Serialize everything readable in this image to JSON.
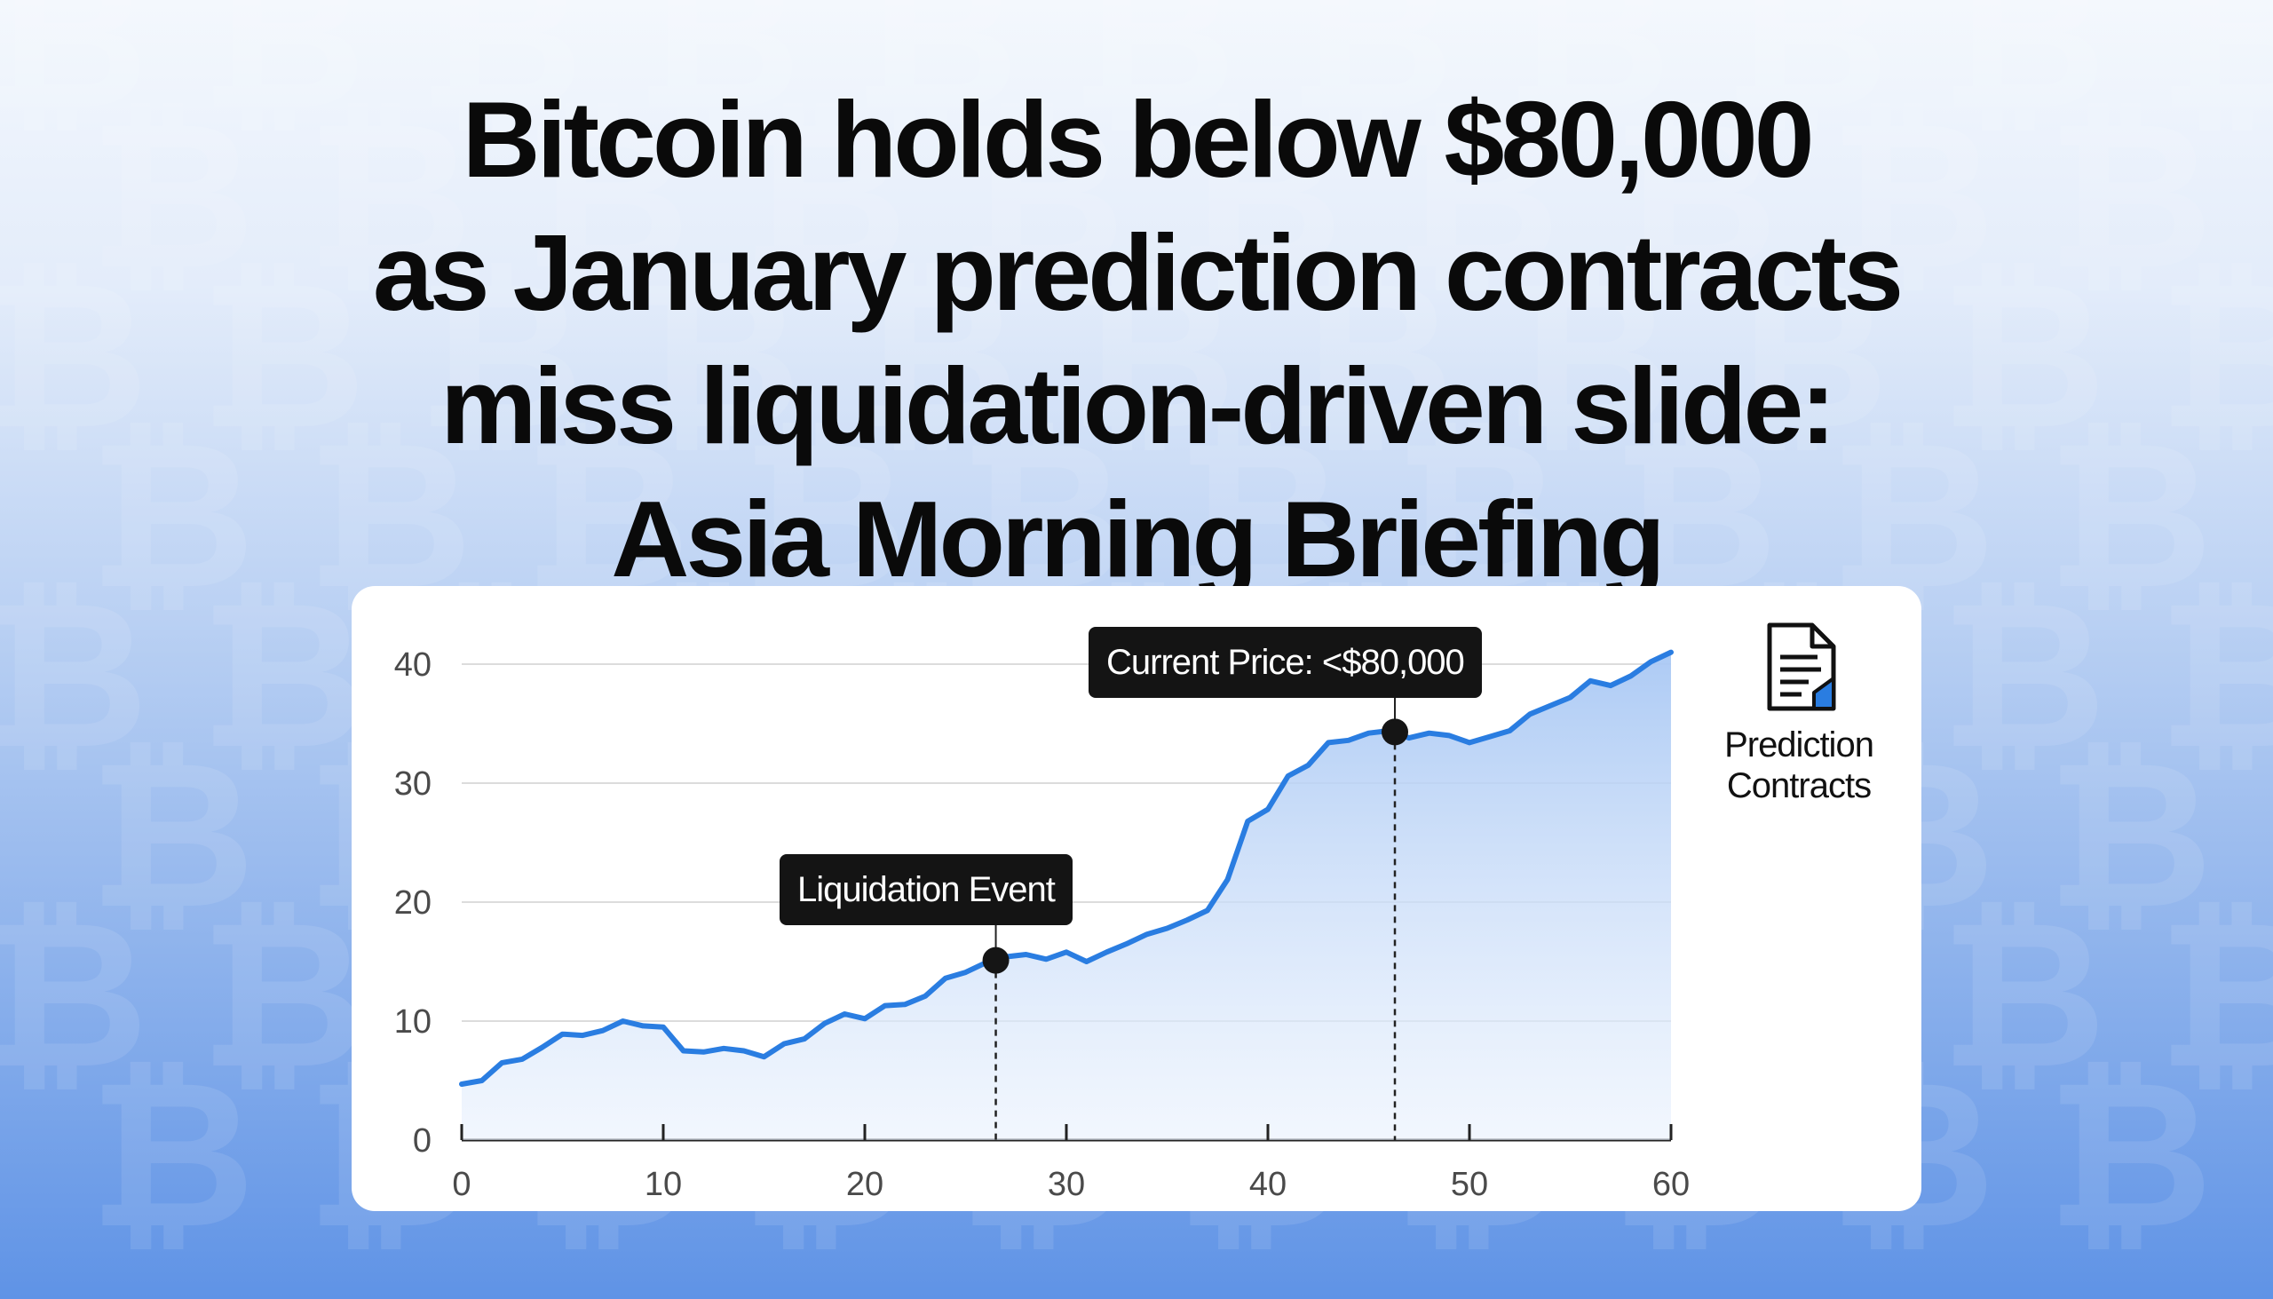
{
  "headline": {
    "lines": [
      "Bitcoin holds below $80,000",
      "as January prediction contracts",
      "miss liquidation-driven slide:",
      "Asia Morning Briefing"
    ]
  },
  "background": {
    "pattern_glyph": "₿",
    "pattern_icon": "bitcoin-icon"
  },
  "chart_data": {
    "type": "area",
    "title": "",
    "xlabel": "",
    "ylabel": "",
    "xlim": [
      0,
      60
    ],
    "ylim": [
      0,
      40
    ],
    "x_ticks": [
      0,
      10,
      20,
      30,
      40,
      50,
      60
    ],
    "y_ticks": [
      0,
      10,
      20,
      30,
      40
    ],
    "grid": "horizontal",
    "series": [
      {
        "color": "#2a7de1",
        "x": [
          0,
          1,
          2,
          3,
          4,
          5,
          6,
          7,
          8,
          9,
          10,
          11,
          12,
          13,
          14,
          15,
          16,
          17,
          18,
          19,
          20,
          21,
          22,
          23,
          24,
          25,
          26,
          27,
          28,
          29,
          30,
          31,
          32,
          33,
          34,
          35,
          36,
          37,
          38,
          39,
          40,
          41,
          42,
          43,
          44,
          45,
          46,
          47,
          48,
          49,
          50,
          51,
          52,
          53,
          54,
          55,
          56,
          57,
          58,
          59,
          60
        ],
        "y": [
          4.7,
          5.0,
          6.5,
          6.8,
          7.8,
          8.9,
          8.8,
          9.2,
          10.0,
          9.6,
          9.5,
          7.5,
          7.4,
          7.7,
          7.5,
          7.0,
          8.1,
          8.5,
          9.8,
          10.6,
          10.2,
          11.3,
          11.4,
          12.1,
          13.6,
          14.1,
          14.9,
          15.4,
          15.6,
          15.2,
          15.8,
          15.0,
          15.8,
          16.5,
          17.3,
          17.8,
          18.5,
          19.3,
          21.9,
          26.8,
          27.8,
          30.6,
          31.5,
          33.4,
          33.6,
          34.2,
          34.4,
          33.8,
          34.2,
          34.0,
          33.4,
          33.9,
          34.4,
          35.8,
          36.5,
          37.2,
          38.6,
          38.2,
          39.0,
          40.2,
          41.0
        ]
      }
    ],
    "annotations": [
      {
        "label": "Liquidation Event",
        "x": 26.5,
        "y": 15.1
      },
      {
        "label": "Current Price: <$80,000",
        "x": 46.3,
        "y": 34.3
      }
    ],
    "legend": {
      "label_lines": [
        "Prediction",
        "Contracts"
      ],
      "icon": "document-chart-icon",
      "placement": "right"
    }
  }
}
